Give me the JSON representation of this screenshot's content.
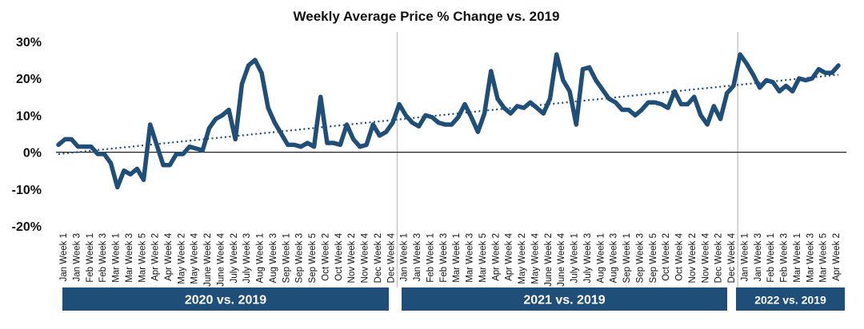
{
  "chart_data": {
    "type": "line",
    "title": "Weekly Average Price % Change vs. 2019",
    "ylim": [
      -20,
      30
    ],
    "yticks": [
      30,
      20,
      10,
      0,
      -10,
      -20
    ],
    "ytick_labels": [
      "30%",
      "20%",
      "10%",
      "0%",
      "-10%",
      "-20%"
    ],
    "trendline": {
      "style": "dotted",
      "start": -0.5,
      "end": 21
    },
    "series": [
      {
        "name": "Weekly Average Price % Change",
        "color": "#1f4e79",
        "values": [
          2,
          3.5,
          3.5,
          1.5,
          1.5,
          1.5,
          -0.5,
          -0.5,
          -3,
          -9.5,
          -5,
          -6,
          -4.5,
          -7.5,
          7.5,
          2,
          -3.5,
          -3.5,
          -0.5,
          -0.5,
          1.5,
          1,
          0.5,
          6.5,
          9,
          10,
          11.5,
          3.5,
          18.5,
          23.5,
          25,
          21.5,
          12,
          8,
          5,
          2,
          2,
          1.5,
          2.5,
          1.5,
          15,
          2.5,
          2.5,
          2,
          7.5,
          3.5,
          1.5,
          2,
          7.5,
          4.5,
          5.5,
          8,
          13,
          10,
          8,
          7,
          10,
          9.5,
          8,
          7.5,
          7.5,
          9.5,
          13,
          9.5,
          5.5,
          10.5,
          22,
          14.5,
          12,
          10.5,
          12.5,
          12,
          13.5,
          12,
          10.5,
          14.5,
          26.5,
          19.5,
          16.5,
          7.5,
          22.5,
          23,
          19.5,
          17,
          14.5,
          13.5,
          11.5,
          11.5,
          10,
          11.5,
          13.5,
          13.5,
          13,
          12,
          16.5,
          13,
          13,
          15,
          10,
          7.5,
          12.5,
          9,
          16,
          18,
          26.5,
          24,
          21,
          17.5,
          19.5,
          19,
          16.5,
          18,
          16.5,
          20,
          19.5,
          20,
          22.5,
          21.5,
          21.5,
          23.5
        ]
      }
    ],
    "x_tick_labels": [
      "Jan Week 1",
      "Jan Week 3",
      "Feb Week 1",
      "Feb Week 3",
      "Mar Week 1",
      "Mar Week 3",
      "Mar Week 5",
      "Apr Week 2",
      "Apr Week 4",
      "May Week 2",
      "May Week 4",
      "June Week 2",
      "June Week 4",
      "July Week 2",
      "July Week 3",
      "Aug Week 1",
      "Aug Week 3",
      "Sep Week 1",
      "Sep Week 3",
      "Sep Week 5",
      "Oct Week 2",
      "Oct Week 4",
      "Nov Week 2",
      "Nov Week 4",
      "Dec Week 2",
      "Dec Week 4",
      "Jan Week 1",
      "Jan Week 3",
      "Feb Week 1",
      "Feb Week 3",
      "Mar Week 1",
      "Mar Week 3",
      "Mar Week 5",
      "Apr Week 2",
      "Apr Week 4",
      "May Week 2",
      "May Week 4",
      "June Week 2",
      "June Week 4",
      "July Week 1",
      "July Week 3",
      "Aug Week 1",
      "Aug Week 3",
      "Sep Week 1",
      "Sep Week 3",
      "Sep Week 5",
      "Oct Week 2",
      "Oct Week 4",
      "Nov Week 2",
      "Nov Week 4",
      "Dec Week 2",
      "Dec Week 4",
      "Jan Week 1",
      "Jan Week 3",
      "Feb Week 1",
      "Feb Week 3",
      "Mar Week 1",
      "Mar Week 3",
      "Mar Week 5",
      "Apr Week 2"
    ],
    "periods": [
      {
        "label": "2020 vs. 2019",
        "tick_start": 0,
        "tick_end": 25
      },
      {
        "label": "2021 vs. 2019",
        "tick_start": 26,
        "tick_end": 51
      },
      {
        "label": "2022 vs. 2019",
        "tick_start": 52,
        "tick_end": 59
      }
    ],
    "colors": {
      "line": "#1f4e79",
      "band": "#1f4e79",
      "band_text": "#ffffff",
      "zero_line": "#222222",
      "separator": "#c8c8c8"
    }
  }
}
